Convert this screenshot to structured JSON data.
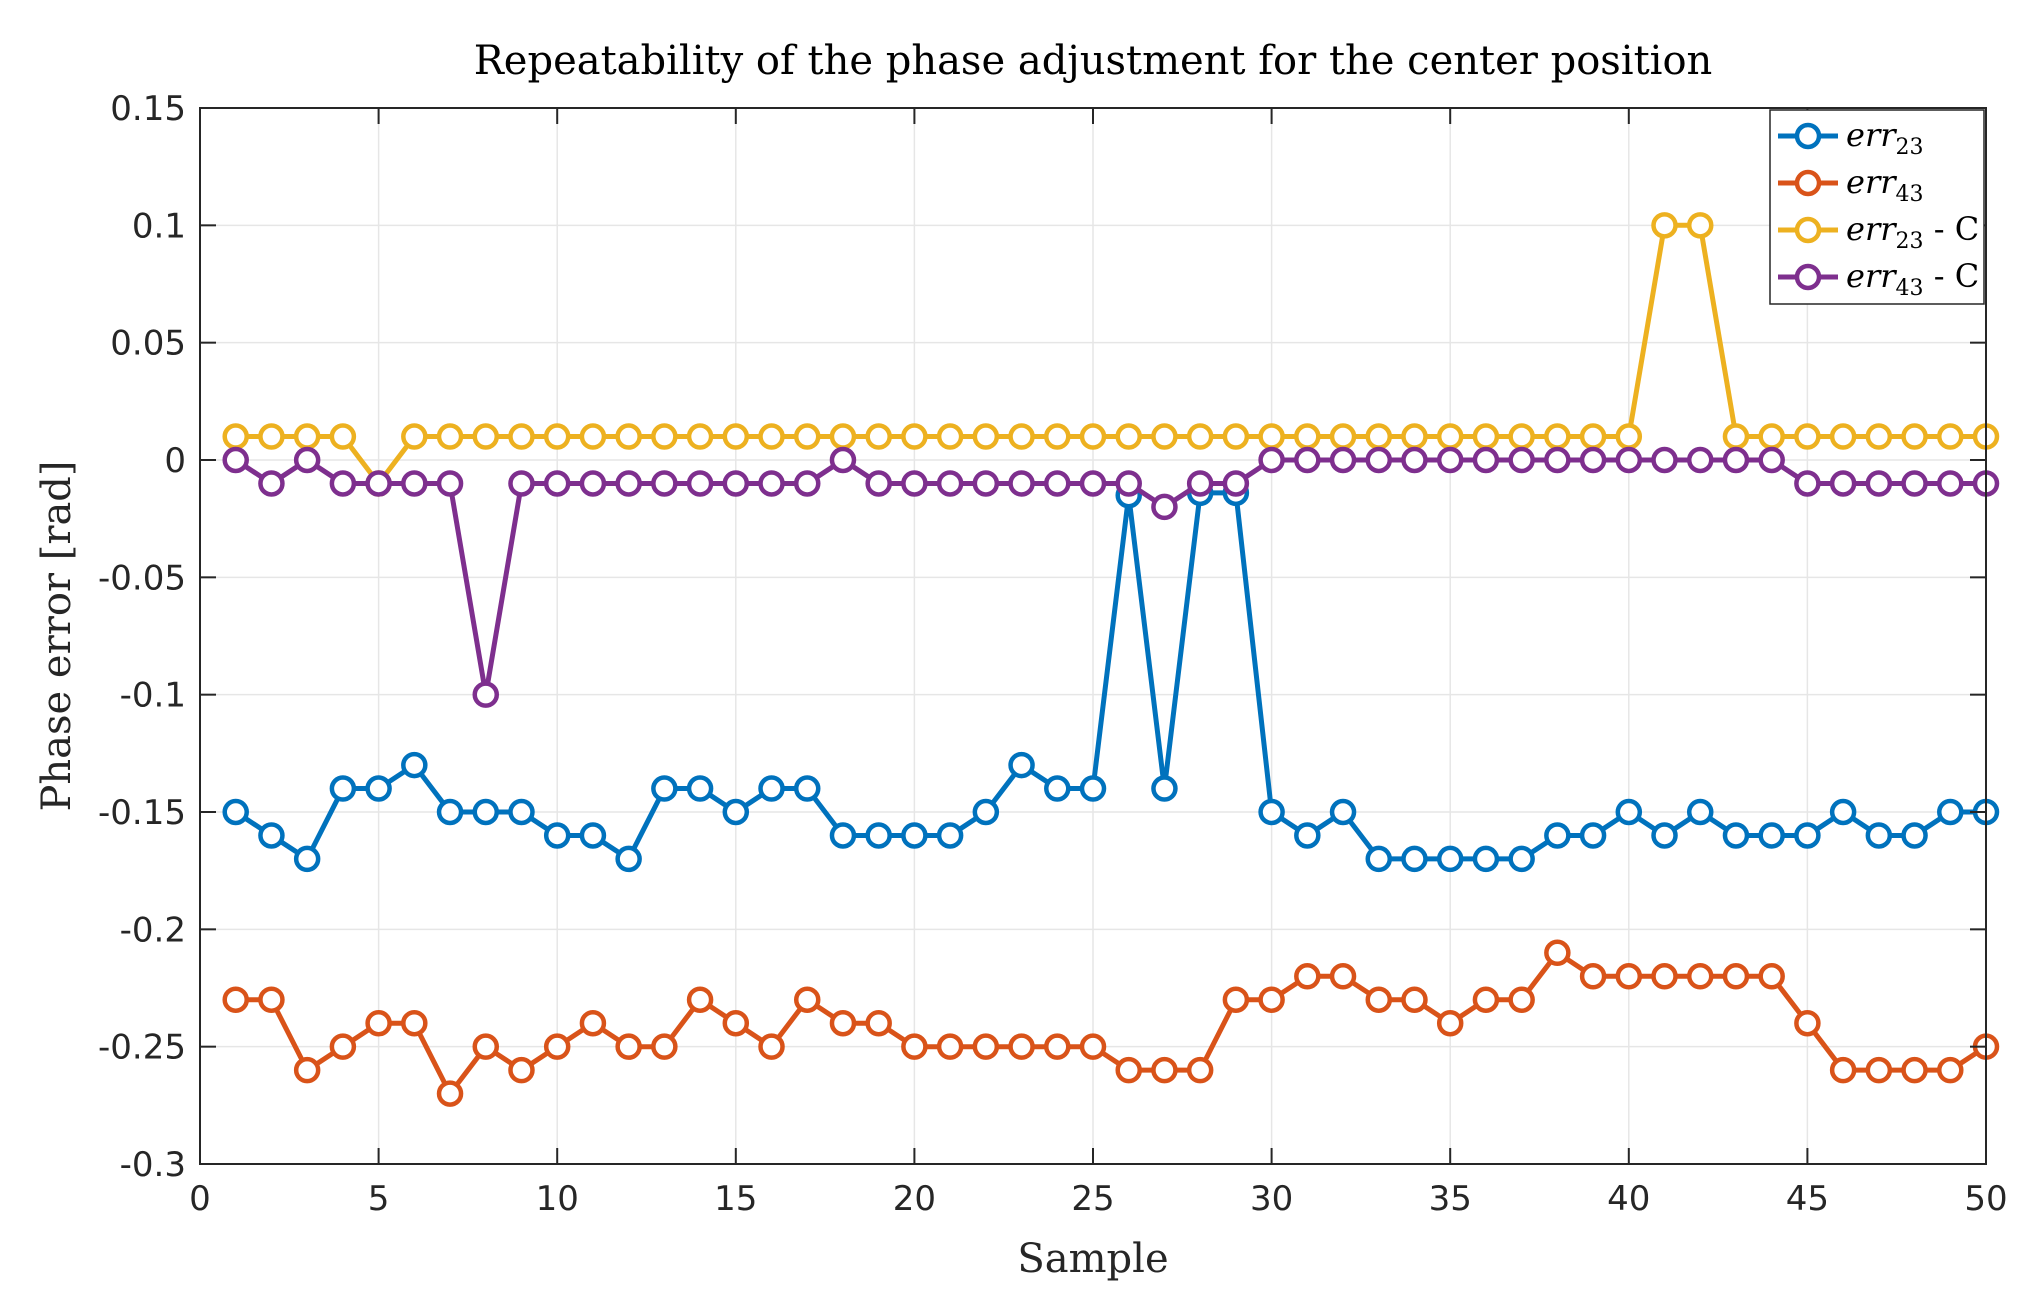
{
  "chart_data": {
    "type": "line",
    "title": "Repeatability of the phase adjustment for the center position",
    "xlabel": "Sample",
    "ylabel": "Phase error [rad]",
    "xlim": [
      0,
      50
    ],
    "ylim": [
      -0.3,
      0.15
    ],
    "xticks": [
      0,
      5,
      10,
      15,
      20,
      25,
      30,
      35,
      40,
      45,
      50
    ],
    "yticks": [
      -0.3,
      -0.25,
      -0.2,
      -0.15,
      -0.1,
      -0.05,
      0,
      0.05,
      0.1,
      0.15
    ],
    "xtick_labels": [
      "0",
      "5",
      "10",
      "15",
      "20",
      "25",
      "30",
      "35",
      "40",
      "45",
      "50"
    ],
    "ytick_labels": [
      "-0.3",
      "-0.25",
      "-0.2",
      "-0.15",
      "-0.1",
      "-0.05",
      "0",
      "0.05",
      "0.1",
      "0.15"
    ],
    "grid": true,
    "legend_position": "top-right",
    "x": [
      1,
      2,
      3,
      4,
      5,
      6,
      7,
      8,
      9,
      10,
      11,
      12,
      13,
      14,
      15,
      16,
      17,
      18,
      19,
      20,
      21,
      22,
      23,
      24,
      25,
      26,
      27,
      28,
      29,
      30,
      31,
      32,
      33,
      34,
      35,
      36,
      37,
      38,
      39,
      40,
      41,
      42,
      43,
      44,
      45,
      46,
      47,
      48,
      49,
      50
    ],
    "series": [
      {
        "name": "err23",
        "legend_base": "err",
        "legend_sub": "23",
        "legend_suffix": "",
        "color": "#0072BD",
        "values": [
          -0.15,
          -0.16,
          -0.17,
          -0.14,
          -0.14,
          -0.13,
          -0.15,
          -0.15,
          -0.15,
          -0.16,
          -0.16,
          -0.17,
          -0.14,
          -0.14,
          -0.15,
          -0.14,
          -0.14,
          -0.16,
          -0.16,
          -0.16,
          -0.16,
          -0.15,
          -0.13,
          -0.14,
          -0.14,
          -0.015,
          -0.14,
          -0.014,
          -0.014,
          -0.15,
          -0.16,
          -0.15,
          -0.17,
          -0.17,
          -0.17,
          -0.17,
          -0.17,
          -0.16,
          -0.16,
          -0.15,
          -0.16,
          -0.15,
          -0.16,
          -0.16,
          -0.16,
          -0.15,
          -0.16,
          -0.16,
          -0.15,
          -0.15
        ]
      },
      {
        "name": "err43",
        "legend_base": "err",
        "legend_sub": "43",
        "legend_suffix": "",
        "color": "#D95319",
        "values": [
          -0.23,
          -0.23,
          -0.26,
          -0.25,
          -0.24,
          -0.24,
          -0.27,
          -0.25,
          -0.26,
          -0.25,
          -0.24,
          -0.25,
          -0.25,
          -0.23,
          -0.24,
          -0.25,
          -0.23,
          -0.24,
          -0.24,
          -0.25,
          -0.25,
          -0.25,
          -0.25,
          -0.25,
          -0.25,
          -0.26,
          -0.26,
          -0.26,
          -0.23,
          -0.23,
          -0.22,
          -0.22,
          -0.23,
          -0.23,
          -0.24,
          -0.23,
          -0.23,
          -0.21,
          -0.22,
          -0.22,
          -0.22,
          -0.22,
          -0.22,
          -0.22,
          -0.24,
          -0.26,
          -0.26,
          -0.26,
          -0.26,
          -0.25
        ]
      },
      {
        "name": "err23 - C",
        "legend_base": "err",
        "legend_sub": "23",
        "legend_suffix": " - C",
        "color": "#EDB120",
        "values": [
          0.01,
          0.01,
          0.01,
          0.01,
          -0.01,
          0.01,
          0.01,
          0.01,
          0.01,
          0.01,
          0.01,
          0.01,
          0.01,
          0.01,
          0.01,
          0.01,
          0.01,
          0.01,
          0.01,
          0.01,
          0.01,
          0.01,
          0.01,
          0.01,
          0.01,
          0.01,
          0.01,
          0.01,
          0.01,
          0.01,
          0.01,
          0.01,
          0.01,
          0.01,
          0.01,
          0.01,
          0.01,
          0.01,
          0.01,
          0.01,
          0.1,
          0.1,
          0.01,
          0.01,
          0.01,
          0.01,
          0.01,
          0.01,
          0.01,
          0.01
        ]
      },
      {
        "name": "err43 - C",
        "legend_base": "err",
        "legend_sub": "43",
        "legend_suffix": " - C",
        "color": "#7E2F8E",
        "values": [
          0,
          -0.01,
          0,
          -0.01,
          -0.01,
          -0.01,
          -0.01,
          -0.1,
          -0.01,
          -0.01,
          -0.01,
          -0.01,
          -0.01,
          -0.01,
          -0.01,
          -0.01,
          -0.01,
          0,
          -0.01,
          -0.01,
          -0.01,
          -0.01,
          -0.01,
          -0.01,
          -0.01,
          -0.01,
          -0.02,
          -0.01,
          -0.01,
          0,
          0,
          0,
          0,
          0,
          0,
          0,
          0,
          0,
          0,
          0,
          0,
          0,
          0,
          0,
          -0.01,
          -0.01,
          -0.01,
          -0.01,
          -0.01,
          -0.01
        ]
      }
    ]
  }
}
